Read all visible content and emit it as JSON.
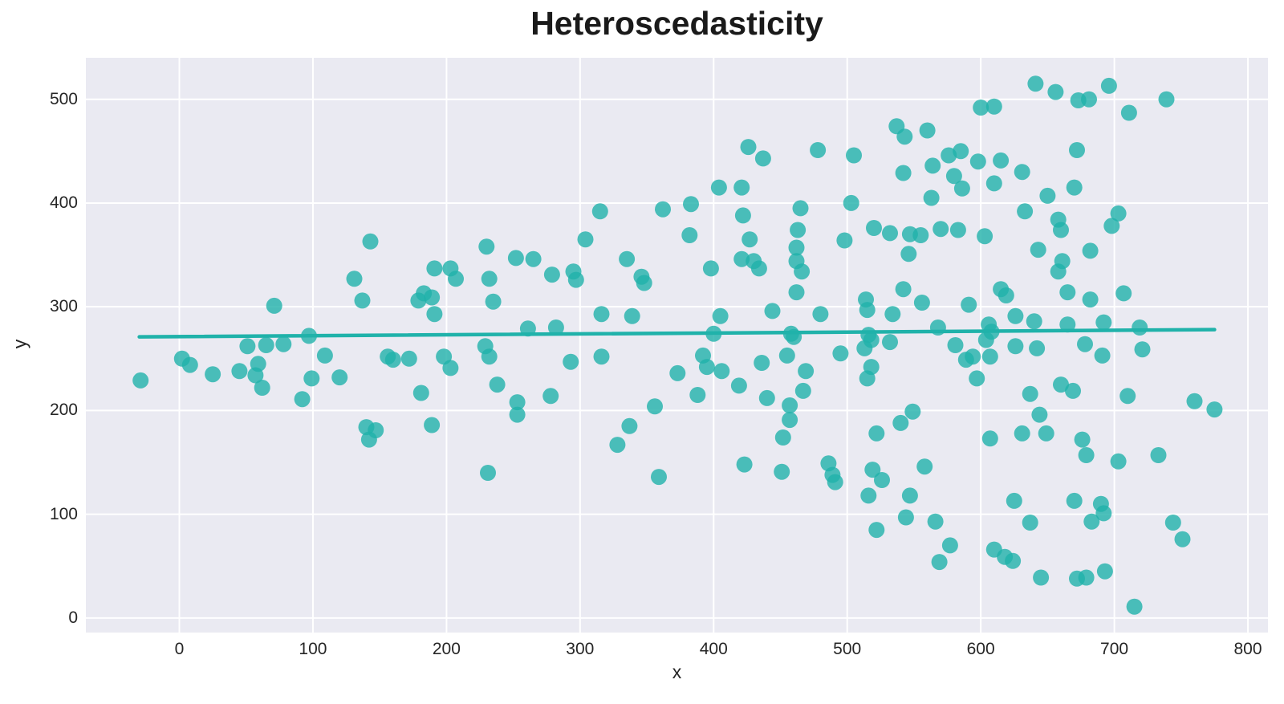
{
  "chart_data": {
    "type": "scatter",
    "title": "Heteroscedasticity",
    "xlabel": "x",
    "ylabel": "y",
    "xlim": [
      -70,
      815
    ],
    "ylim": [
      -14,
      540
    ],
    "xticks": [
      0,
      100,
      200,
      300,
      400,
      500,
      600,
      700,
      800
    ],
    "yticks": [
      0,
      100,
      200,
      300,
      400,
      500
    ],
    "grid": true,
    "legend": "none",
    "colors": {
      "plot_background": "#eaeaf2",
      "gridline": "#ffffff",
      "point": "#20B2AA",
      "regression_line": "#20B2AA",
      "title_text": "#1a1a1a",
      "tick_text": "#262626"
    },
    "point_radius": 10,
    "point_opacity": 0.8,
    "regression_line": {
      "x1": -30,
      "y1": 271,
      "x2": 775,
      "y2": 278,
      "width": 4.5
    },
    "points": [
      [
        -29,
        229
      ],
      [
        2,
        250
      ],
      [
        8,
        244
      ],
      [
        25,
        235
      ],
      [
        45,
        238
      ],
      [
        57,
        234
      ],
      [
        59,
        245
      ],
      [
        51,
        262
      ],
      [
        65,
        263
      ],
      [
        78,
        264
      ],
      [
        97,
        272
      ],
      [
        62,
        222
      ],
      [
        92,
        211
      ],
      [
        99,
        231
      ],
      [
        109,
        253
      ],
      [
        120,
        232
      ],
      [
        71,
        301
      ],
      [
        131,
        327
      ],
      [
        143,
        363
      ],
      [
        137,
        306
      ],
      [
        140,
        184
      ],
      [
        142,
        172
      ],
      [
        147,
        181
      ],
      [
        156,
        252
      ],
      [
        160,
        249
      ],
      [
        172,
        250
      ],
      [
        179,
        306
      ],
      [
        183,
        313
      ],
      [
        189,
        309
      ],
      [
        191,
        293
      ],
      [
        181,
        217
      ],
      [
        189,
        186
      ],
      [
        191,
        337
      ],
      [
        203,
        337
      ],
      [
        207,
        327
      ],
      [
        198,
        252
      ],
      [
        203,
        241
      ],
      [
        230,
        358
      ],
      [
        232,
        327
      ],
      [
        235,
        305
      ],
      [
        229,
        262
      ],
      [
        232,
        252
      ],
      [
        238,
        225
      ],
      [
        231,
        140
      ],
      [
        253,
        208
      ],
      [
        253,
        196
      ],
      [
        252,
        347
      ],
      [
        261,
        279
      ],
      [
        265,
        346
      ],
      [
        278,
        214
      ],
      [
        279,
        331
      ],
      [
        282,
        280
      ],
      [
        293,
        247
      ],
      [
        295,
        334
      ],
      [
        297,
        326
      ],
      [
        304,
        365
      ],
      [
        315,
        392
      ],
      [
        316,
        293
      ],
      [
        316,
        252
      ],
      [
        328,
        167
      ],
      [
        337,
        185
      ],
      [
        339,
        291
      ],
      [
        335,
        346
      ],
      [
        346,
        329
      ],
      [
        348,
        323
      ],
      [
        356,
        204
      ],
      [
        359,
        136
      ],
      [
        362,
        394
      ],
      [
        383,
        399
      ],
      [
        382,
        369
      ],
      [
        404,
        415
      ],
      [
        421,
        415
      ],
      [
        426,
        454
      ],
      [
        437,
        443
      ],
      [
        398,
        337
      ],
      [
        422,
        388
      ],
      [
        427,
        365
      ],
      [
        421,
        346
      ],
      [
        430,
        344
      ],
      [
        434,
        337
      ],
      [
        444,
        296
      ],
      [
        478,
        451
      ],
      [
        465,
        395
      ],
      [
        463,
        374
      ],
      [
        462,
        357
      ],
      [
        462,
        344
      ],
      [
        466,
        334
      ],
      [
        462,
        314
      ],
      [
        505,
        446
      ],
      [
        503,
        400
      ],
      [
        498,
        364
      ],
      [
        514,
        307
      ],
      [
        515,
        297
      ],
      [
        520,
        376
      ],
      [
        532,
        371
      ],
      [
        537,
        474
      ],
      [
        543,
        464
      ],
      [
        542,
        429
      ],
      [
        547,
        370
      ],
      [
        555,
        369
      ],
      [
        546,
        351
      ],
      [
        542,
        317
      ],
      [
        560,
        470
      ],
      [
        564,
        436
      ],
      [
        563,
        405
      ],
      [
        570,
        375
      ],
      [
        576,
        446
      ],
      [
        556,
        304
      ],
      [
        534,
        293
      ],
      [
        480,
        293
      ],
      [
        405,
        291
      ],
      [
        400,
        274
      ],
      [
        458,
        274
      ],
      [
        460,
        271
      ],
      [
        516,
        273
      ],
      [
        518,
        268
      ],
      [
        532,
        266
      ],
      [
        568,
        280
      ],
      [
        373,
        236
      ],
      [
        392,
        253
      ],
      [
        395,
        242
      ],
      [
        406,
        238
      ],
      [
        388,
        215
      ],
      [
        419,
        224
      ],
      [
        436,
        246
      ],
      [
        440,
        212
      ],
      [
        455,
        253
      ],
      [
        457,
        205
      ],
      [
        469,
        238
      ],
      [
        467,
        219
      ],
      [
        457,
        191
      ],
      [
        452,
        174
      ],
      [
        495,
        255
      ],
      [
        513,
        260
      ],
      [
        518,
        242
      ],
      [
        515,
        231
      ],
      [
        423,
        148
      ],
      [
        451,
        141
      ],
      [
        486,
        149
      ],
      [
        489,
        138
      ],
      [
        491,
        131
      ],
      [
        549,
        199
      ],
      [
        540,
        188
      ],
      [
        522,
        178
      ],
      [
        519,
        143
      ],
      [
        526,
        133
      ],
      [
        558,
        146
      ],
      [
        516,
        118
      ],
      [
        547,
        118
      ],
      [
        522,
        85
      ],
      [
        544,
        97
      ],
      [
        566,
        93
      ],
      [
        569,
        54
      ],
      [
        577,
        70
      ],
      [
        641,
        515
      ],
      [
        656,
        507
      ],
      [
        673,
        499
      ],
      [
        681,
        500
      ],
      [
        696,
        513
      ],
      [
        739,
        500
      ],
      [
        711,
        487
      ],
      [
        600,
        492
      ],
      [
        610,
        493
      ],
      [
        585,
        450
      ],
      [
        598,
        440
      ],
      [
        615,
        441
      ],
      [
        580,
        426
      ],
      [
        586,
        414
      ],
      [
        610,
        419
      ],
      [
        631,
        430
      ],
      [
        672,
        451
      ],
      [
        670,
        415
      ],
      [
        650,
        407
      ],
      [
        633,
        392
      ],
      [
        658,
        384
      ],
      [
        660,
        374
      ],
      [
        703,
        390
      ],
      [
        698,
        378
      ],
      [
        583,
        374
      ],
      [
        603,
        368
      ],
      [
        643,
        355
      ],
      [
        682,
        354
      ],
      [
        661,
        344
      ],
      [
        658,
        334
      ],
      [
        615,
        317
      ],
      [
        619,
        311
      ],
      [
        665,
        314
      ],
      [
        682,
        307
      ],
      [
        707,
        313
      ],
      [
        591,
        302
      ],
      [
        626,
        291
      ],
      [
        606,
        283
      ],
      [
        608,
        276
      ],
      [
        640,
        286
      ],
      [
        665,
        283
      ],
      [
        692,
        285
      ],
      [
        719,
        280
      ],
      [
        626,
        262
      ],
      [
        678,
        264
      ],
      [
        604,
        268
      ],
      [
        581,
        263
      ],
      [
        589,
        249
      ],
      [
        594,
        252
      ],
      [
        607,
        252
      ],
      [
        597,
        231
      ],
      [
        642,
        260
      ],
      [
        691,
        253
      ],
      [
        721,
        259
      ],
      [
        637,
        216
      ],
      [
        660,
        225
      ],
      [
        669,
        219
      ],
      [
        710,
        214
      ],
      [
        760,
        209
      ],
      [
        775,
        201
      ],
      [
        644,
        196
      ],
      [
        607,
        173
      ],
      [
        631,
        178
      ],
      [
        649,
        178
      ],
      [
        676,
        172
      ],
      [
        679,
        157
      ],
      [
        703,
        151
      ],
      [
        733,
        157
      ],
      [
        625,
        113
      ],
      [
        670,
        113
      ],
      [
        690,
        110
      ],
      [
        692,
        101
      ],
      [
        683,
        93
      ],
      [
        637,
        92
      ],
      [
        744,
        92
      ],
      [
        751,
        76
      ],
      [
        610,
        66
      ],
      [
        618,
        59
      ],
      [
        624,
        55
      ],
      [
        645,
        39
      ],
      [
        672,
        38
      ],
      [
        679,
        39
      ],
      [
        693,
        45
      ],
      [
        715,
        11
      ]
    ]
  }
}
